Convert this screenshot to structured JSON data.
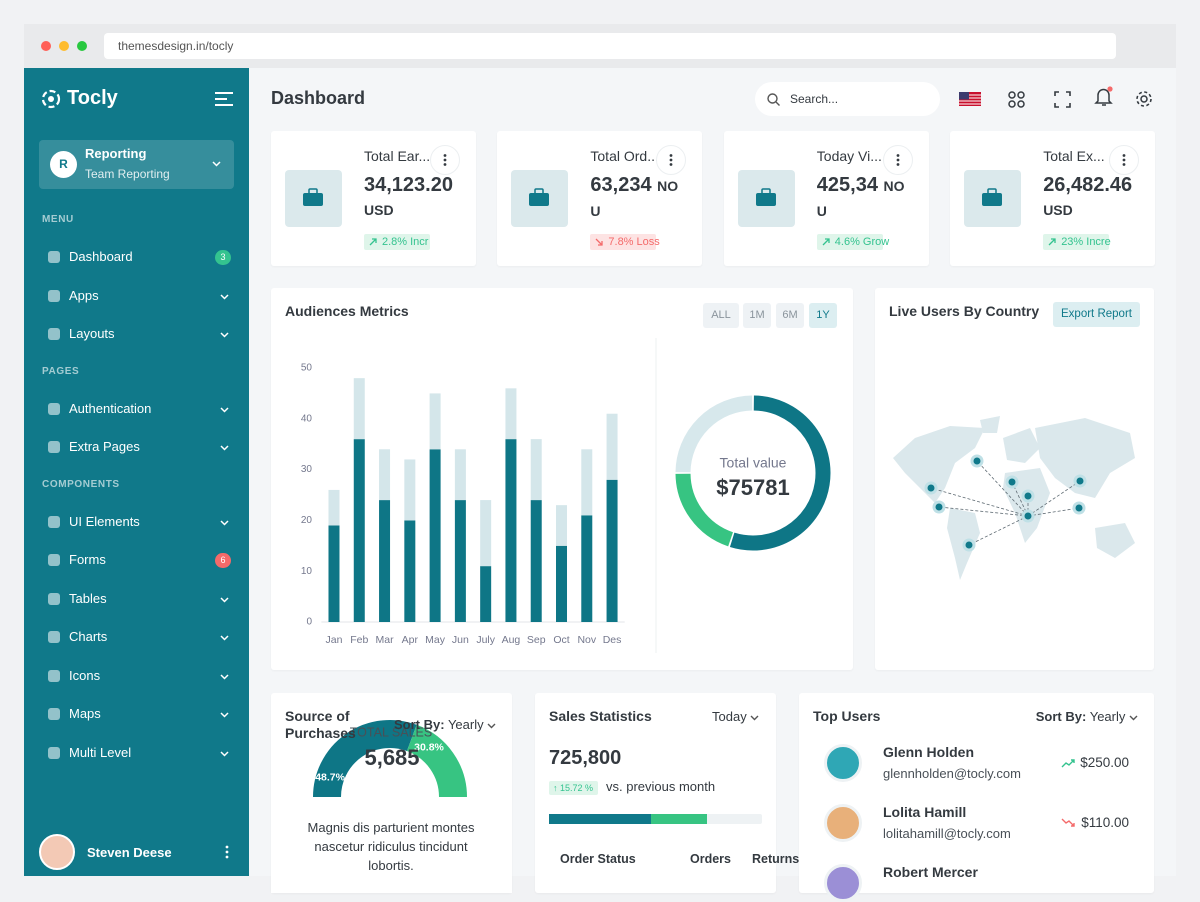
{
  "browser": {
    "url": "themesdesign.in/tocly"
  },
  "sidebar": {
    "brand": "Tocly",
    "account": {
      "initial": "R",
      "title": "Reporting",
      "subtitle": "Team Reporting"
    },
    "sections": [
      {
        "heading": "MENU",
        "items": [
          {
            "label": "Dashboard",
            "badge": "3",
            "badge_color": "#34c38f"
          },
          {
            "label": "Apps"
          },
          {
            "label": "Layouts"
          }
        ]
      },
      {
        "heading": "PAGES",
        "items": [
          {
            "label": "Authentication"
          },
          {
            "label": "Extra Pages"
          }
        ]
      },
      {
        "heading": "COMPONENTS",
        "items": [
          {
            "label": "UI Elements"
          },
          {
            "label": "Forms",
            "badge": "6",
            "badge_color": "#f46a6a"
          },
          {
            "label": "Tables"
          },
          {
            "label": "Charts"
          },
          {
            "label": "Icons"
          },
          {
            "label": "Maps"
          },
          {
            "label": "Multi Level"
          }
        ]
      }
    ],
    "user": "Steven Deese"
  },
  "header": {
    "title": "Dashboard",
    "search": "Search..."
  },
  "stat_cards": [
    {
      "label": "Total Ear...",
      "value": "34,123.20",
      "unit": "USD",
      "change": "2.8% Incr",
      "trend": "up"
    },
    {
      "label": "Total Ord...",
      "value": "63,234",
      "unit": "NOU",
      "change": "7.8% Loss",
      "trend": "down"
    },
    {
      "label": "Today Vi...",
      "value": "425,34",
      "unit": "NOU",
      "change": "4.6% Grow",
      "trend": "up"
    },
    {
      "label": "Total Ex...",
      "value": "26,482.46",
      "unit": "USD",
      "change": "23% Incre",
      "trend": "up"
    }
  ],
  "live_users": {
    "title": "Live Users By Country",
    "button": "Export Report"
  },
  "source": {
    "sort_label": "Sort By:",
    "sort_value": "Yearly",
    "text": "Magnis dis parturient montes nascetur ridiculus tincidunt lobortis."
  },
  "sales": {
    "title": "Sales Statistics",
    "period": "Today",
    "value": "725,800",
    "change": "15.72 %",
    "compare": "vs. previous month",
    "columns": [
      "Order Status",
      "Orders",
      "Returns"
    ]
  },
  "top_users": {
    "title": "Top Users",
    "sort_label": "Sort By:",
    "sort_value": "Yearly",
    "users": [
      {
        "name": "Glenn Holden",
        "email": "glennholden@tocly.com",
        "amount": "$250.00",
        "trend": "up"
      },
      {
        "name": "Lolita Hamill",
        "email": "lolitahamill@tocly.com",
        "amount": "$110.00",
        "trend": "down"
      },
      {
        "name": "Robert Mercer"
      }
    ]
  },
  "chart_data": [
    {
      "type": "bar",
      "stacked": true,
      "title": "Audiences Metrics",
      "filters": [
        "ALL",
        "1M",
        "6M",
        "1Y"
      ],
      "active_filter": 3,
      "categories": [
        "Jan",
        "Feb",
        "Mar",
        "Apr",
        "May",
        "Jun",
        "July",
        "Aug",
        "Sep",
        "Oct",
        "Nov",
        "Des"
      ],
      "series": [
        {
          "color": "#0e7686",
          "values": [
            19,
            36,
            24,
            20,
            34,
            24,
            11,
            36,
            24,
            15,
            21,
            28
          ]
        },
        {
          "color": "#d4e6ea",
          "values": [
            7,
            12,
            10,
            12,
            11,
            10,
            13,
            10,
            12,
            8,
            13,
            13
          ]
        }
      ],
      "ylim": [
        0,
        50
      ],
      "yticks": [
        0,
        10,
        20,
        30,
        40,
        50
      ],
      "grid": false
    },
    {
      "type": "donut",
      "center_label": "Total value",
      "center_value": "$75781",
      "values": [
        55,
        20,
        25
      ],
      "colors": [
        "#0e7686",
        "#37c482",
        "#d7e8ec"
      ]
    },
    {
      "type": "gauge",
      "title": "Source of Purchases",
      "label": "TOTAL SALES",
      "total": "5,685",
      "values": [
        48.7,
        30.8
      ],
      "value_labels": [
        "48.7%",
        "30.8%"
      ],
      "colors": [
        "#0e7686",
        "#37c482"
      ]
    }
  ]
}
